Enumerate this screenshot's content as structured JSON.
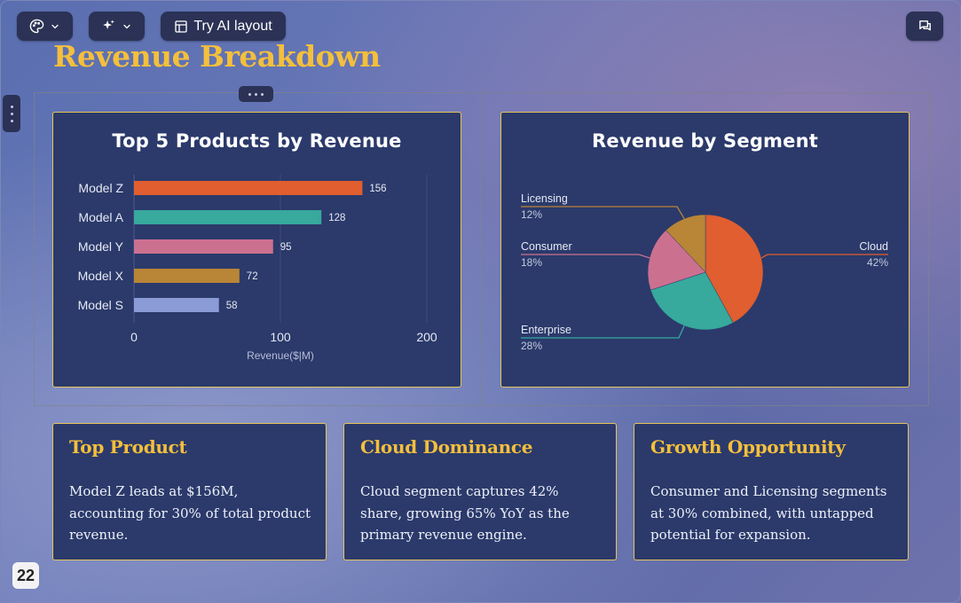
{
  "toolbar": {
    "theme_icon": "palette-icon",
    "ai_icon": "sparkles-icon",
    "try_ai_layout_label": "Try AI layout",
    "comments_icon": "chat-icon"
  },
  "slide": {
    "title": "Revenue Breakdown",
    "page_number": "22"
  },
  "colors": {
    "title": "#f4bf3c",
    "card_bg": "#2b3a6b",
    "card_border": "#e5c45a"
  },
  "chart_data": [
    {
      "type": "bar",
      "orientation": "horizontal",
      "title": "Top 5 Products by Revenue",
      "categories": [
        "Model Z",
        "Model A",
        "Model Y",
        "Model X",
        "Model S"
      ],
      "values": [
        156,
        128,
        95,
        72,
        58
      ],
      "colors": [
        "#e05e2f",
        "#37a99d",
        "#cc7090",
        "#b98536",
        "#8b9bd6"
      ],
      "xlabel": "Revenue($|M)",
      "ylabel": "",
      "xlim": [
        0,
        200
      ],
      "xticks": [
        "0",
        "100",
        "200"
      ],
      "grid": true
    },
    {
      "type": "pie",
      "title": "Revenue by Segment",
      "slices": [
        {
          "label": "Cloud",
          "pct_label": "42%",
          "value": 42,
          "color": "#e05e2f"
        },
        {
          "label": "Enterprise",
          "pct_label": "28%",
          "value": 28,
          "color": "#37a99d"
        },
        {
          "label": "Consumer",
          "pct_label": "18%",
          "value": 18,
          "color": "#cc7090"
        },
        {
          "label": "Licensing",
          "pct_label": "12%",
          "value": 12,
          "color": "#b98536"
        }
      ]
    }
  ],
  "cards": [
    {
      "title": "Top Product",
      "text": "Model Z leads at $156M, accounting for 30% of total product revenue."
    },
    {
      "title": "Cloud Dominance",
      "text": "Cloud segment captures 42% share, growing 65% YoY as the primary revenue engine."
    },
    {
      "title": "Growth Opportunity",
      "text": "Consumer and Licensing segments at 30% combined, with untapped potential for expansion."
    }
  ]
}
